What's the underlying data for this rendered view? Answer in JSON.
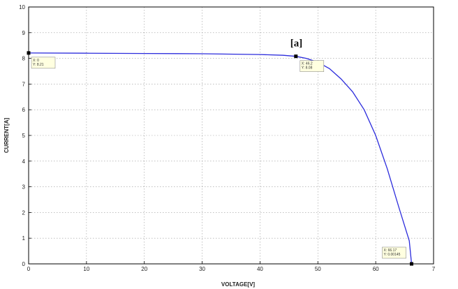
{
  "chart_data": {
    "type": "line",
    "title": "",
    "xlabel": "VOLTAGE[V]",
    "ylabel": "CURRENT[A]",
    "xlim": [
      0,
      70
    ],
    "ylim": [
      0,
      10
    ],
    "xticks": [
      "0",
      "10",
      "20",
      "30",
      "40",
      "50",
      "60",
      "7"
    ],
    "yticks": [
      "0",
      "1",
      "2",
      "3",
      "4",
      "5",
      "6",
      "7",
      "8",
      "9",
      "10"
    ],
    "grid": true,
    "line_color": "#2b2bdc",
    "annotation": "[a]",
    "series": [
      {
        "x": [
          0,
          10,
          20,
          30,
          40,
          44,
          46.2,
          48,
          50,
          52,
          54,
          56,
          58,
          60,
          62,
          64,
          65.8,
          66.2
        ],
        "y": [
          8.21,
          8.2,
          8.19,
          8.18,
          8.15,
          8.12,
          8.08,
          8.0,
          7.85,
          7.6,
          7.2,
          6.7,
          6.0,
          5.0,
          3.7,
          2.2,
          0.9,
          0.0
        ]
      }
    ],
    "data_tips": [
      {
        "x": 0,
        "y": 8.21,
        "lines": [
          "X: 0",
          "Y: 8.21"
        ]
      },
      {
        "x": 46.2,
        "y": 8.08,
        "lines": [
          "X: 46.2",
          "Y: 8.08"
        ]
      },
      {
        "x": 66.2,
        "y": 0.0,
        "lines": [
          "X: 66.17",
          "Y: 0.00145"
        ]
      }
    ]
  }
}
